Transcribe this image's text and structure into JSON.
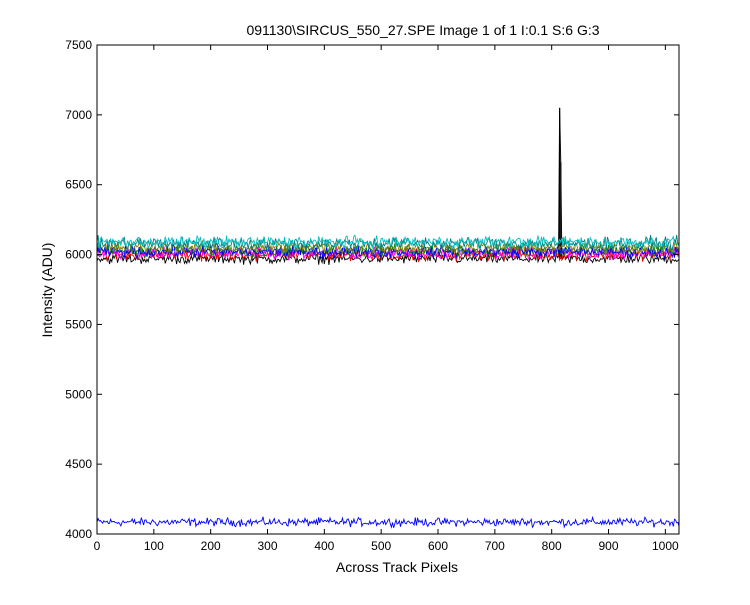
{
  "chart_data": {
    "type": "line",
    "title": "091130\\SIRCUS_550_27.SPE  Image 1 of 1  I:0.1  S:6  G:3",
    "xlabel": "Across Track Pixels",
    "ylabel": "Intensity (ADU)",
    "xlim": [
      0,
      1024
    ],
    "ylim": [
      4000,
      7500
    ],
    "xticks": [
      0,
      100,
      200,
      300,
      400,
      500,
      600,
      700,
      800,
      900,
      1000
    ],
    "yticks": [
      4000,
      4500,
      5000,
      5500,
      6000,
      6500,
      7000,
      7500
    ],
    "grid": false,
    "legend": "none",
    "series": [
      {
        "color": "#000000",
        "baseline": 5970,
        "noise": 22,
        "spikes": [
          {
            "x": 814,
            "y": 7050
          },
          {
            "x": 816,
            "y": 6660
          }
        ]
      },
      {
        "color": "#0000ff",
        "baseline": 4085,
        "noise": 18
      },
      {
        "color": "#ff0000",
        "baseline": 6000,
        "noise": 25
      },
      {
        "color": "#ff00ff",
        "baseline": 6010,
        "noise": 25
      },
      {
        "color": "#008000",
        "baseline": 6030,
        "noise": 25
      },
      {
        "color": "#0000ff",
        "baseline": 6020,
        "noise": 25
      },
      {
        "color": "#808000",
        "baseline": 6050,
        "noise": 25
      },
      {
        "color": "#008080",
        "baseline": 6080,
        "noise": 28
      },
      {
        "color": "#00bfbf",
        "baseline": 6090,
        "noise": 25
      }
    ]
  }
}
